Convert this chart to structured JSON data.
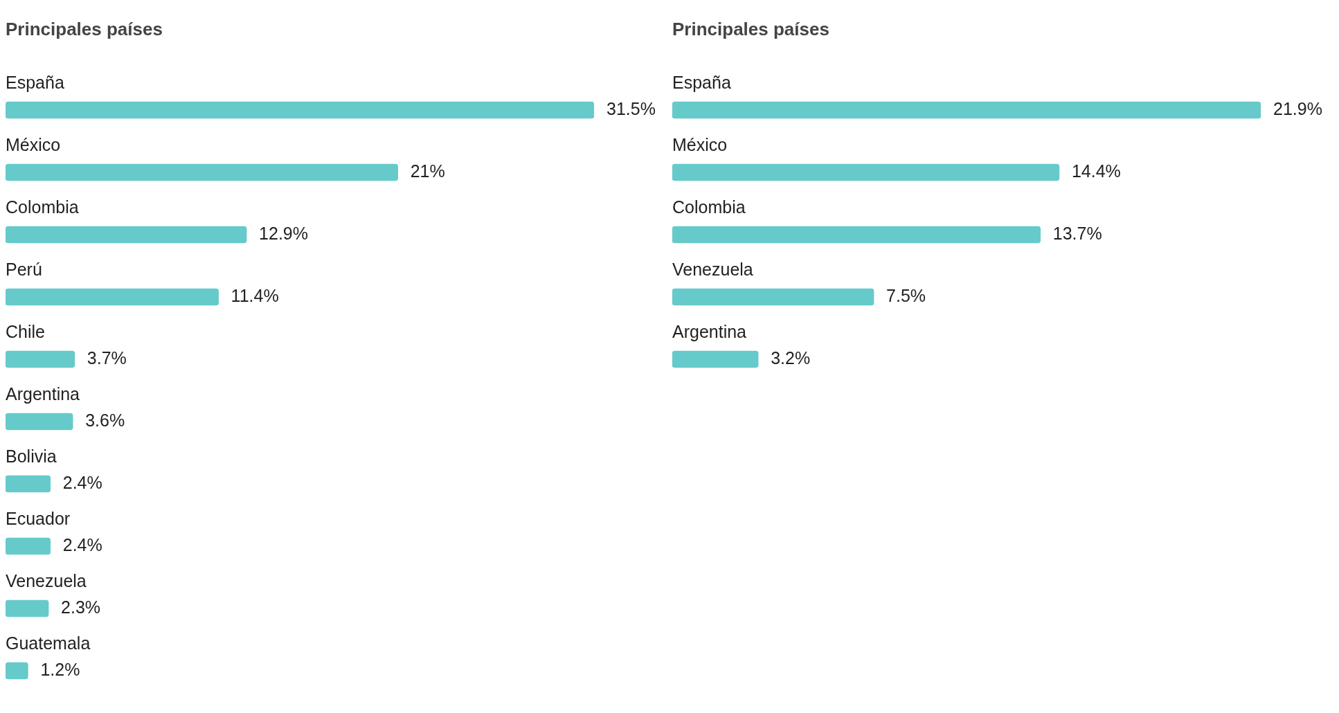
{
  "chart_data": [
    {
      "type": "bar",
      "orientation": "horizontal",
      "title": "Principales países",
      "tick_labels": "y",
      "categories": [
        "España",
        "México",
        "Colombia",
        "Perú",
        "Chile",
        "Argentina",
        "Bolivia",
        "Ecuador",
        "Venezuela",
        "Guatemala"
      ],
      "values": [
        31.5,
        21,
        12.9,
        11.4,
        3.7,
        3.6,
        2.4,
        2.4,
        2.3,
        1.2
      ],
      "color": "#66caca",
      "value_labels": [
        "31.5%",
        "21%",
        "12.9%",
        "11.4%",
        "3.7%",
        "3.6%",
        "2.4%",
        "2.4%",
        "2.3%",
        "1.2%"
      ]
    },
    {
      "type": "bar",
      "orientation": "horizontal",
      "title": "Principales países",
      "tick_labels": "y",
      "categories": [
        "España",
        "México",
        "Colombia",
        "Venezuela",
        "Argentina"
      ],
      "values": [
        21.9,
        14.4,
        13.7,
        7.5,
        3.2
      ],
      "color": "#66caca",
      "value_labels": [
        "21.9%",
        "14.4%",
        "13.7%",
        "7.5%",
        "3.2%"
      ]
    }
  ]
}
